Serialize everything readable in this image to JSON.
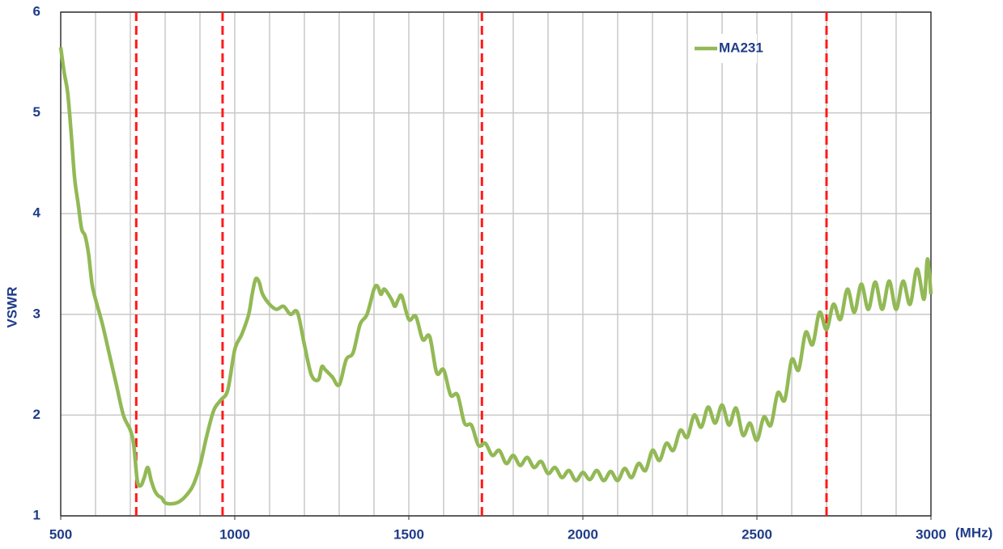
{
  "chart_data": {
    "type": "line",
    "ylabel": "VSWR",
    "xunit": "(MHz)",
    "xlim": [
      500,
      3000
    ],
    "ylim": [
      1,
      6
    ],
    "xticks": [
      500,
      1000,
      1500,
      2000,
      2500,
      3000
    ],
    "yticks": [
      1,
      2,
      3,
      4,
      5,
      6
    ],
    "x_grid_step": 100,
    "grid": true,
    "legend": "upper right",
    "markers": [
      717,
      965,
      1710,
      2700
    ],
    "marker_color": "#ff1a1a",
    "x": [
      500,
      510,
      520,
      530,
      540,
      550,
      560,
      570,
      580,
      590,
      600,
      620,
      640,
      660,
      680,
      700,
      710,
      720,
      730,
      740,
      750,
      760,
      770,
      780,
      790,
      800,
      820,
      840,
      860,
      880,
      900,
      920,
      940,
      960,
      980,
      1000,
      1020,
      1040,
      1050,
      1060,
      1070,
      1080,
      1100,
      1120,
      1140,
      1160,
      1180,
      1200,
      1220,
      1240,
      1250,
      1260,
      1280,
      1300,
      1320,
      1340,
      1360,
      1380,
      1400,
      1410,
      1420,
      1430,
      1450,
      1460,
      1470,
      1480,
      1500,
      1520,
      1540,
      1560,
      1580,
      1600,
      1620,
      1640,
      1660,
      1680,
      1700,
      1720,
      1740,
      1760,
      1780,
      1800,
      1820,
      1840,
      1860,
      1880,
      1900,
      1920,
      1940,
      1960,
      1980,
      2000,
      2020,
      2040,
      2060,
      2080,
      2100,
      2120,
      2140,
      2160,
      2180,
      2200,
      2220,
      2240,
      2260,
      2280,
      2300,
      2320,
      2340,
      2360,
      2380,
      2400,
      2420,
      2440,
      2460,
      2480,
      2500,
      2520,
      2540,
      2560,
      2580,
      2600,
      2620,
      2640,
      2660,
      2680,
      2700,
      2720,
      2740,
      2760,
      2780,
      2800,
      2820,
      2840,
      2860,
      2880,
      2900,
      2920,
      2940,
      2960,
      2980,
      2990,
      3000
    ],
    "series": [
      {
        "name": "MA231",
        "color": "#92b955",
        "values": [
          5.65,
          5.4,
          5.2,
          4.8,
          4.35,
          4.1,
          3.85,
          3.78,
          3.6,
          3.3,
          3.15,
          2.9,
          2.6,
          2.3,
          2.0,
          1.85,
          1.7,
          1.35,
          1.3,
          1.38,
          1.48,
          1.35,
          1.25,
          1.2,
          1.18,
          1.13,
          1.12,
          1.14,
          1.2,
          1.3,
          1.5,
          1.8,
          2.05,
          2.15,
          2.25,
          2.65,
          2.8,
          3.0,
          3.2,
          3.35,
          3.32,
          3.2,
          3.1,
          3.05,
          3.08,
          3.0,
          3.02,
          2.7,
          2.4,
          2.35,
          2.48,
          2.45,
          2.38,
          2.3,
          2.55,
          2.62,
          2.9,
          3.0,
          3.25,
          3.28,
          3.2,
          3.25,
          3.15,
          3.08,
          3.15,
          3.18,
          2.95,
          2.98,
          2.75,
          2.78,
          2.42,
          2.45,
          2.2,
          2.2,
          1.92,
          1.9,
          1.7,
          1.72,
          1.6,
          1.65,
          1.52,
          1.6,
          1.5,
          1.58,
          1.48,
          1.54,
          1.42,
          1.48,
          1.38,
          1.45,
          1.35,
          1.43,
          1.36,
          1.45,
          1.35,
          1.44,
          1.35,
          1.47,
          1.38,
          1.52,
          1.45,
          1.65,
          1.55,
          1.72,
          1.65,
          1.85,
          1.78,
          2.0,
          1.88,
          2.08,
          1.92,
          2.1,
          1.9,
          2.07,
          1.8,
          1.92,
          1.75,
          1.98,
          1.9,
          2.22,
          2.15,
          2.55,
          2.45,
          2.82,
          2.7,
          3.02,
          2.85,
          3.1,
          2.95,
          3.25,
          3.02,
          3.3,
          3.05,
          3.32,
          3.05,
          3.33,
          3.05,
          3.33,
          3.1,
          3.45,
          3.15,
          3.55,
          3.2
        ]
      }
    ]
  }
}
